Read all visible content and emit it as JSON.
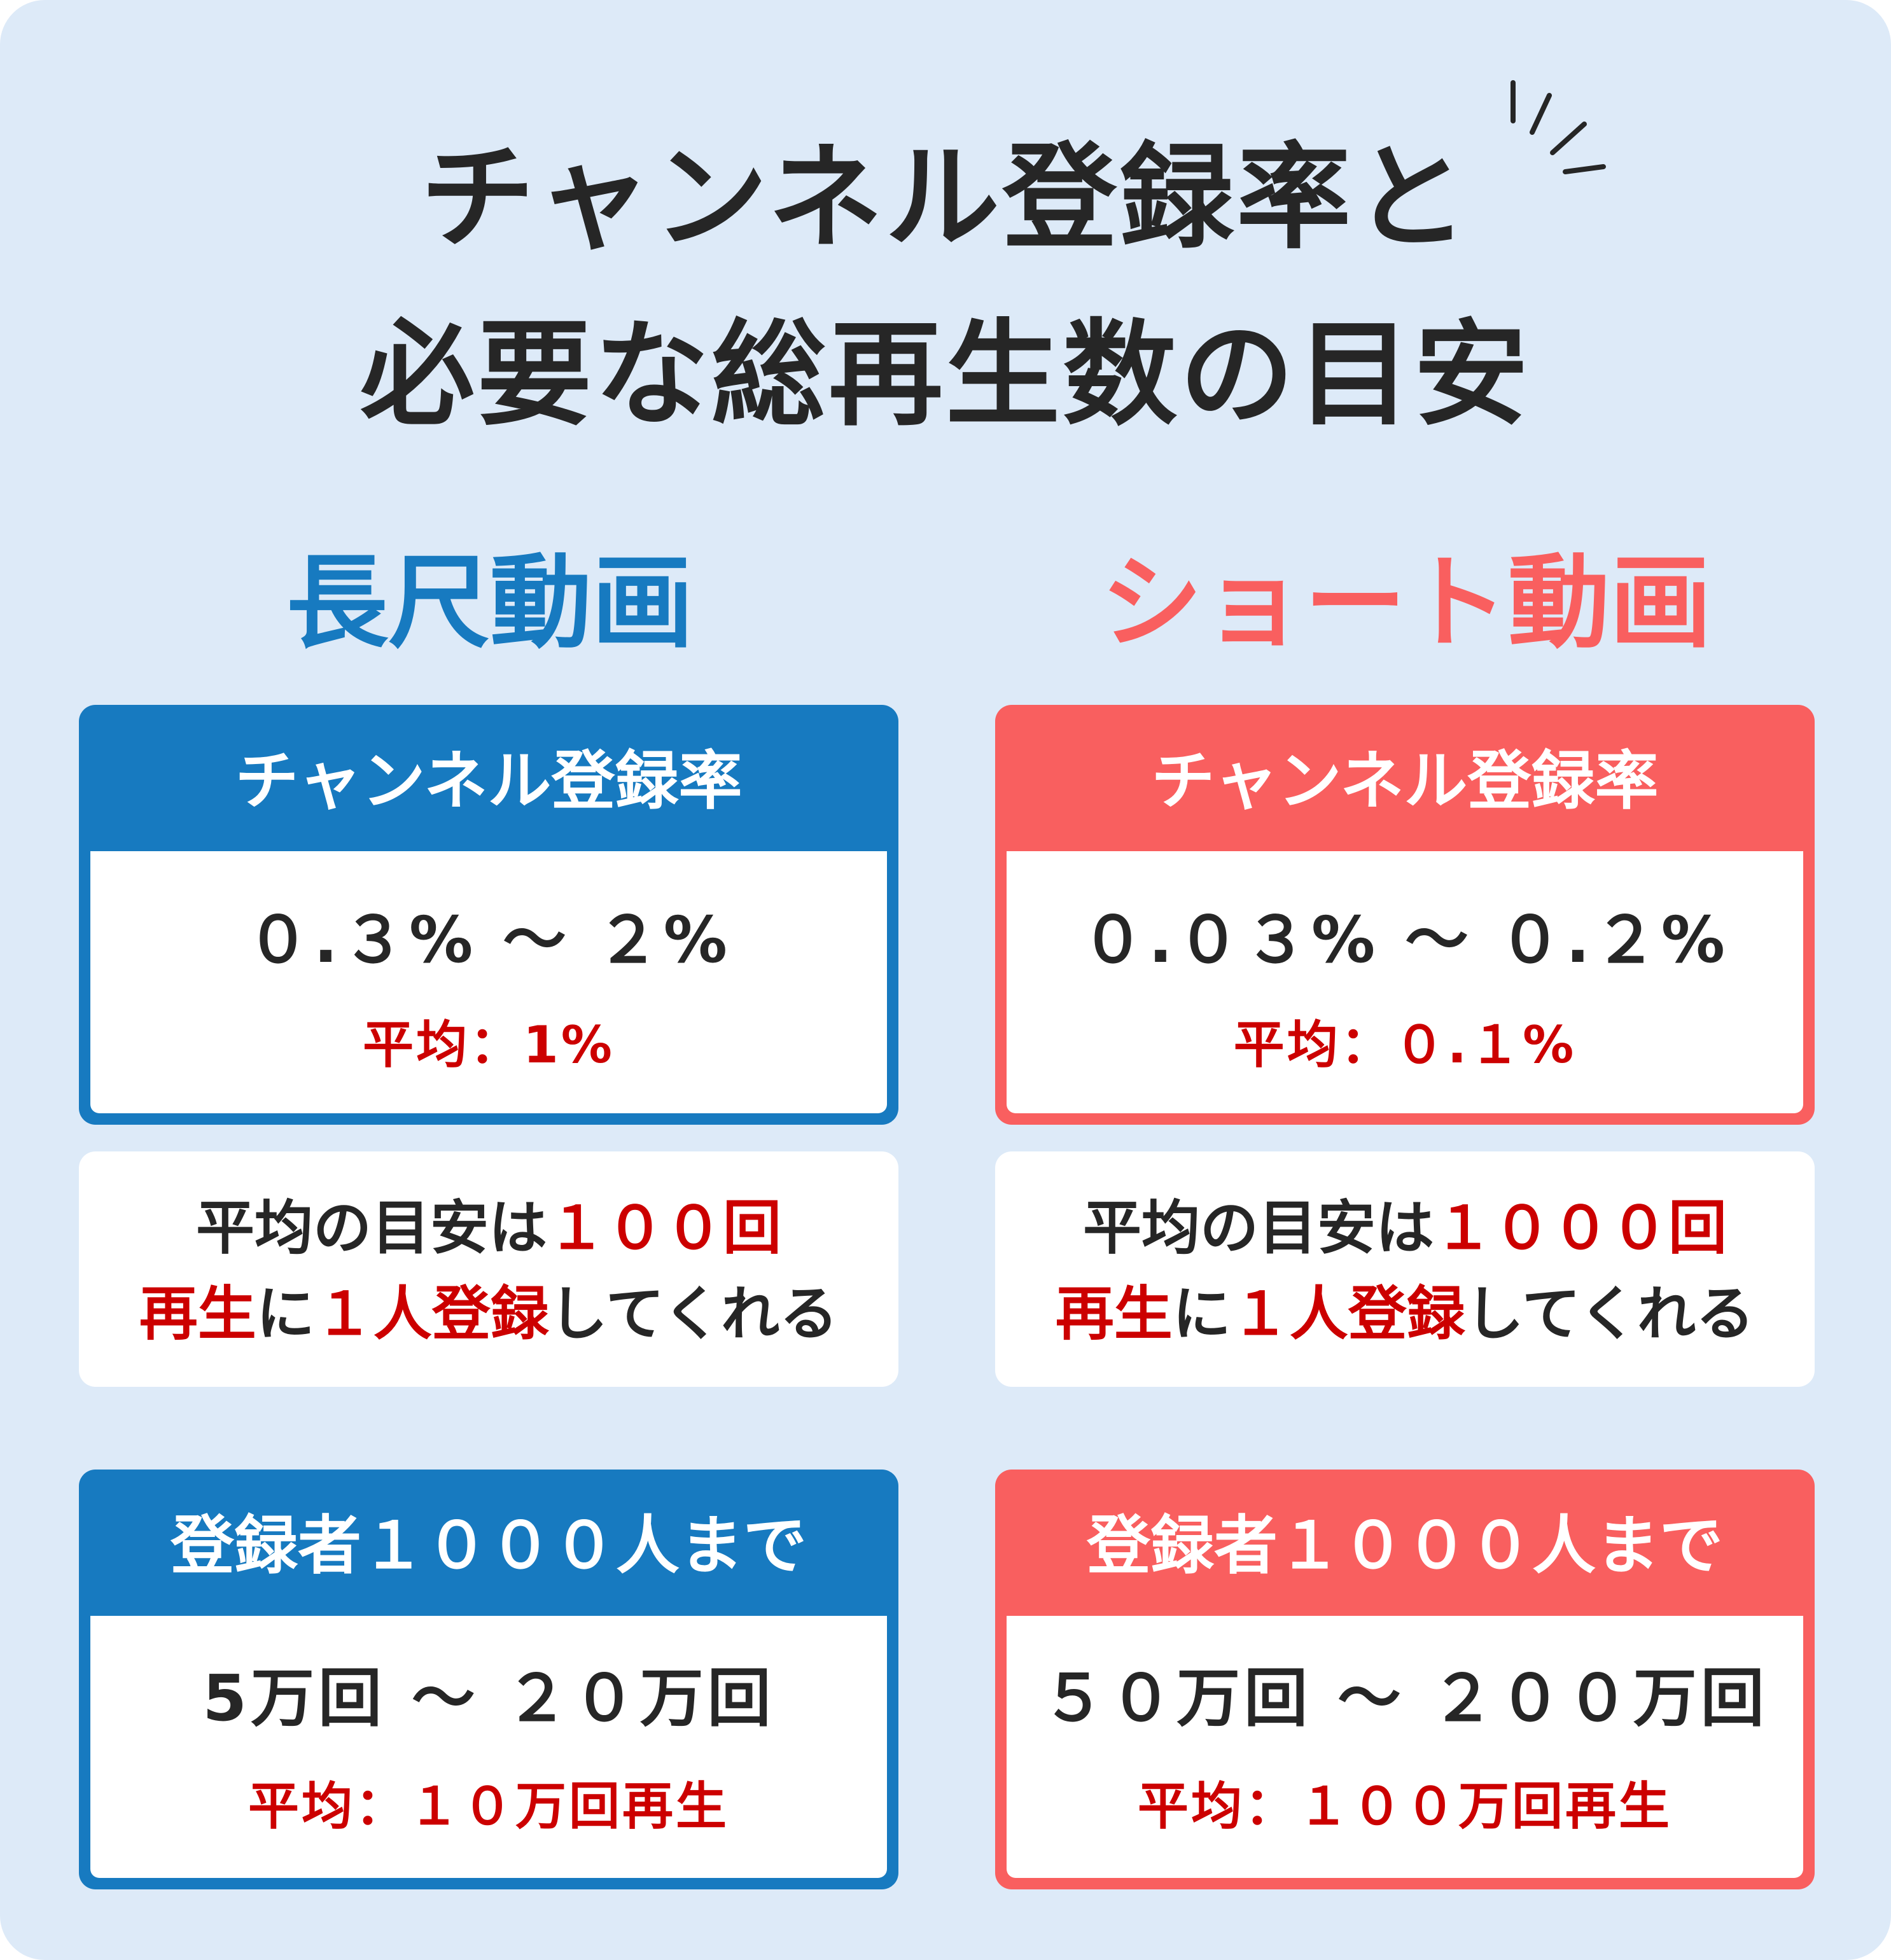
{
  "title": {
    "line1": "チャンネル登録率と",
    "line2": "必要な総再生数の目安"
  },
  "colors": {
    "background": "#ddeaf8",
    "long_accent": "#177ac0",
    "short_accent": "#f95f5f",
    "highlight_red": "#cc0000",
    "text_dark": "#262626"
  },
  "long": {
    "heading": "長尺動画",
    "rate_card": {
      "header": "チャンネル登録率",
      "range": "０.３% 〜 ２%",
      "average": "平均：1%"
    },
    "note": {
      "line1_a": "平均の目安は",
      "line1_b": "１００回",
      "line2_a": "再生",
      "line2_b": "に",
      "line2_c": "１人登録",
      "line2_d": "してくれる"
    },
    "views_card": {
      "header": "登録者１０００人まで",
      "range": "5万回 〜 ２０万回",
      "average": "平均：１０万回再生"
    }
  },
  "short": {
    "heading": "ショート動画",
    "rate_card": {
      "header": "チャンネル登録率",
      "range": "０.０３% 〜 ０.２%",
      "average": "平均：０.１%"
    },
    "note": {
      "line1_a": "平均の目安は",
      "line1_b": "１０００回",
      "line2_a": "再生",
      "line2_b": "に",
      "line2_c": "１人登録",
      "line2_d": "してくれる"
    },
    "views_card": {
      "header": "登録者１０００人まで",
      "range": "５０万回 〜 ２００万回",
      "average": "平均：１００万回再生"
    }
  }
}
